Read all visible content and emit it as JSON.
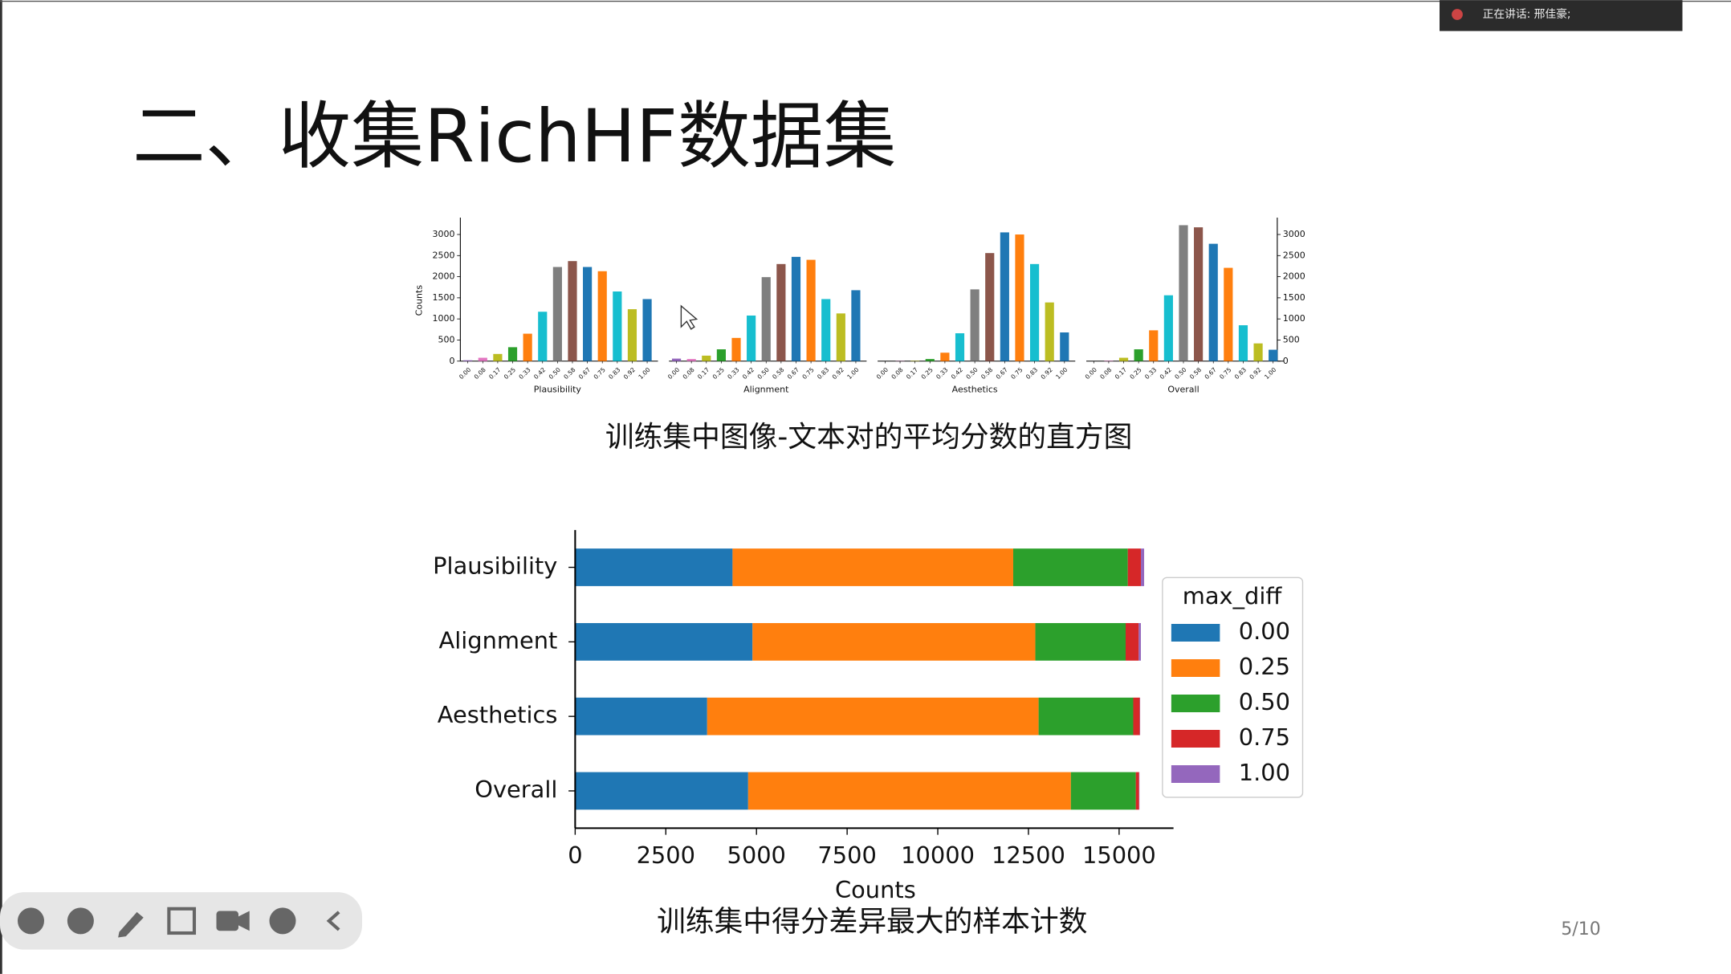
{
  "title": "二、收集RichHF数据集",
  "speaker_label": "正在讲话: 邢佳豪;",
  "page_number": "5/10",
  "captions": [
    "训练集中图像-文本对的平均分数的直方图",
    "训练集中得分差异最大的样本计数"
  ],
  "chart_data": [
    {
      "type": "bar",
      "xlabel": "Plausibility",
      "ylabel": "Counts",
      "categories": [
        "0.00",
        "0.08",
        "0.17",
        "0.25",
        "0.33",
        "0.42",
        "0.50",
        "0.58",
        "0.67",
        "0.75",
        "0.83",
        "0.92",
        "1.00"
      ],
      "values": [
        20,
        80,
        170,
        330,
        650,
        1170,
        2230,
        2370,
        2230,
        2130,
        1650,
        1230,
        1470
      ],
      "colors": [
        "#9467bd",
        "#e377c2",
        "#bcbd22",
        "#2ca02c",
        "#ff7f0e",
        "#17becf",
        "#7f7f7f",
        "#8c564b",
        "#1f77b4",
        "#ff7f0e",
        "#17becf",
        "#bcbd22",
        "#1f77b4"
      ],
      "ylim": [
        0,
        3400
      ],
      "yticks": [
        0,
        500,
        1000,
        1500,
        2000,
        2500,
        3000
      ],
      "ytick_side": "left"
    },
    {
      "type": "bar",
      "xlabel": "Alignment",
      "categories": [
        "0.00",
        "0.08",
        "0.17",
        "0.25",
        "0.33",
        "0.42",
        "0.50",
        "0.58",
        "0.67",
        "0.75",
        "0.83",
        "0.92",
        "1.00"
      ],
      "values": [
        60,
        50,
        130,
        280,
        550,
        1080,
        1990,
        2300,
        2470,
        2400,
        1470,
        1130,
        1680
      ],
      "colors": [
        "#9467bd",
        "#e377c2",
        "#bcbd22",
        "#2ca02c",
        "#ff7f0e",
        "#17becf",
        "#7f7f7f",
        "#8c564b",
        "#1f77b4",
        "#ff7f0e",
        "#17becf",
        "#bcbd22",
        "#1f77b4"
      ],
      "ylim": [
        0,
        3400
      ]
    },
    {
      "type": "bar",
      "xlabel": "Aesthetics",
      "categories": [
        "0.00",
        "0.08",
        "0.17",
        "0.25",
        "0.33",
        "0.42",
        "0.50",
        "0.58",
        "0.67",
        "0.75",
        "0.83",
        "0.92",
        "1.00"
      ],
      "values": [
        0,
        5,
        10,
        50,
        200,
        660,
        1700,
        2560,
        3050,
        3000,
        2300,
        1390,
        680
      ],
      "colors": [
        "#9467bd",
        "#e377c2",
        "#bcbd22",
        "#2ca02c",
        "#ff7f0e",
        "#17becf",
        "#7f7f7f",
        "#8c564b",
        "#1f77b4",
        "#ff7f0e",
        "#17becf",
        "#bcbd22",
        "#1f77b4"
      ],
      "ylim": [
        0,
        3400
      ]
    },
    {
      "type": "bar",
      "xlabel": "Overall",
      "categories": [
        "0.00",
        "0.08",
        "0.17",
        "0.25",
        "0.33",
        "0.42",
        "0.50",
        "0.58",
        "0.67",
        "0.75",
        "0.83",
        "0.92",
        "1.00"
      ],
      "values": [
        0,
        10,
        80,
        280,
        730,
        1560,
        3220,
        3170,
        2780,
        2210,
        850,
        420,
        270
      ],
      "colors": [
        "#9467bd",
        "#e377c2",
        "#bcbd22",
        "#2ca02c",
        "#ff7f0e",
        "#17becf",
        "#7f7f7f",
        "#8c564b",
        "#1f77b4",
        "#ff7f0e",
        "#17becf",
        "#bcbd22",
        "#1f77b4"
      ],
      "ylim": [
        0,
        3400
      ],
      "yticks": [
        0,
        500,
        1000,
        1500,
        2000,
        2500,
        3000
      ],
      "ytick_side": "right"
    },
    {
      "type": "stacked_barh",
      "xlabel": "Counts",
      "legend_title": "max_diff",
      "legend": "right",
      "categories": [
        "Plausibility",
        "Alignment",
        "Aesthetics",
        "Overall"
      ],
      "series": [
        {
          "name": "0.00",
          "color": "#1f77b4",
          "values": [
            4340,
            4890,
            3640,
            4770
          ]
        },
        {
          "name": "0.25",
          "color": "#ff7f0e",
          "values": [
            7740,
            7800,
            9140,
            8900
          ]
        },
        {
          "name": "0.50",
          "color": "#2ca02c",
          "values": [
            3160,
            2490,
            2610,
            1790
          ]
        },
        {
          "name": "0.75",
          "color": "#d62728",
          "values": [
            360,
            360,
            180,
            90
          ]
        },
        {
          "name": "1.00",
          "color": "#9467bd",
          "values": [
            90,
            60,
            10,
            10
          ]
        }
      ],
      "xlim": [
        0,
        16500
      ],
      "xticks": [
        0,
        2500,
        5000,
        7500,
        10000,
        12500,
        15000
      ]
    }
  ]
}
